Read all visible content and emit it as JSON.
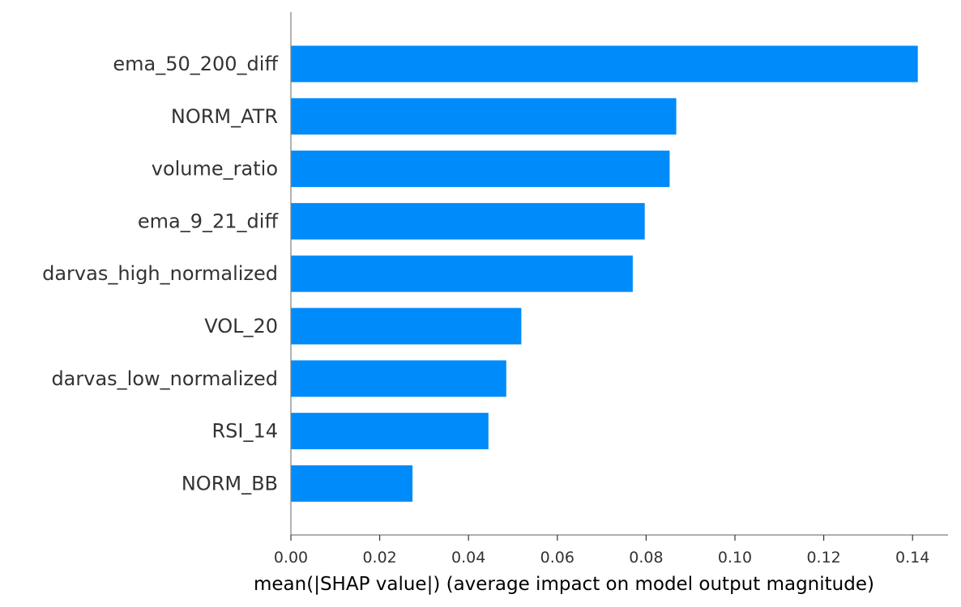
{
  "chart_data": {
    "type": "bar",
    "orientation": "horizontal",
    "categories": [
      "ema_50_200_diff",
      "NORM_ATR",
      "volume_ratio",
      "ema_9_21_diff",
      "darvas_high_normalized",
      "VOL_20",
      "darvas_low_normalized",
      "RSI_14",
      "NORM_BB"
    ],
    "values": [
      0.1412,
      0.0868,
      0.0853,
      0.0797,
      0.077,
      0.0519,
      0.0485,
      0.0445,
      0.0274
    ],
    "xlabel": "mean(|SHAP value|) (average impact on model output magnitude)",
    "ylabel": "",
    "title": "",
    "xlim": [
      0,
      0.148
    ],
    "xticks": [
      0.0,
      0.02,
      0.04,
      0.06,
      0.08,
      0.1,
      0.12,
      0.14
    ],
    "xtick_labels": [
      "0.00",
      "0.02",
      "0.04",
      "0.06",
      "0.08",
      "0.10",
      "0.12",
      "0.14"
    ],
    "grid": false,
    "bar_color": "#008bfb",
    "text_color": "#333333"
  }
}
